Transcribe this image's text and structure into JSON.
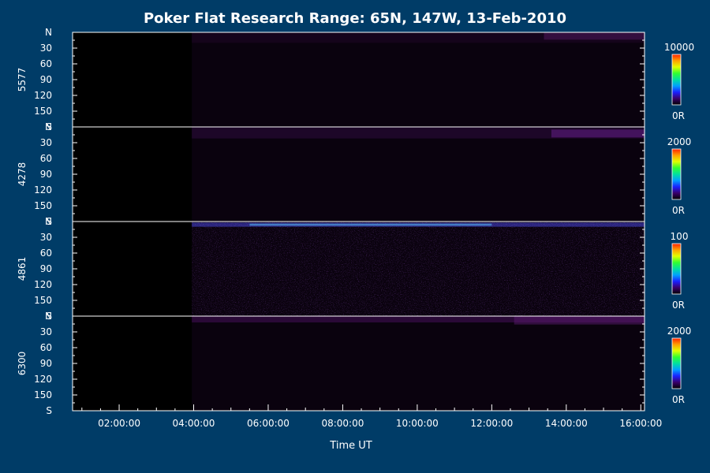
{
  "chart_data": {
    "type": "heatmap",
    "title": "Poker Flat Research Range: 65N, 147W, 13-Feb-2010",
    "xlabel": "Time UT",
    "x_ticks": [
      "02:00:00",
      "04:00:00",
      "06:00:00",
      "08:00:00",
      "10:00:00",
      "12:00:00",
      "14:00:00",
      "16:00:00"
    ],
    "x_range_hours": [
      0.75,
      16.1
    ],
    "data_start_hours": 3.95,
    "y_ticks": [
      "N",
      "30",
      "60",
      "90",
      "120",
      "150",
      "S"
    ],
    "y_range_degrees": [
      0,
      180
    ],
    "colorbar_min_label": "0R",
    "panels": [
      {
        "ylabel": "5577",
        "colorbar_max": "10000",
        "colorbar_max_value": 10000,
        "bright_bands": [
          {
            "elev_from": 0,
            "elev_to": 20,
            "t_from": 3.95,
            "t_to": 16.1,
            "color": "#2a0a35",
            "intensity": 0.35
          },
          {
            "elev_from": 0,
            "elev_to": 14,
            "t_from": 13.4,
            "t_to": 16.1,
            "color": "#5a1a6a",
            "intensity": 0.45
          }
        ]
      },
      {
        "ylabel": "4278",
        "colorbar_max": "2000",
        "colorbar_max_value": 2000,
        "bright_bands": [
          {
            "elev_from": 0,
            "elev_to": 22,
            "t_from": 3.95,
            "t_to": 16.1,
            "color": "#3a1050",
            "intensity": 0.4
          },
          {
            "elev_from": 5,
            "elev_to": 20,
            "t_from": 13.6,
            "t_to": 16.1,
            "color": "#6a2090",
            "intensity": 0.5
          }
        ]
      },
      {
        "ylabel": "4861",
        "colorbar_max": "100",
        "colorbar_max_value": 100,
        "bright_bands": [
          {
            "elev_from": 2,
            "elev_to": 10,
            "t_from": 3.95,
            "t_to": 16.1,
            "color": "#4040c8",
            "intensity": 0.6
          },
          {
            "elev_from": 4,
            "elev_to": 8,
            "t_from": 5.5,
            "t_to": 12.0,
            "color": "#4aa0e0",
            "intensity": 0.7
          }
        ],
        "noise": true
      },
      {
        "ylabel": "6300",
        "colorbar_max": "2000",
        "colorbar_max_value": 2000,
        "bright_bands": [
          {
            "elev_from": 0,
            "elev_to": 12,
            "t_from": 3.95,
            "t_to": 16.1,
            "color": "#4a1060",
            "intensity": 0.5
          },
          {
            "elev_from": 0,
            "elev_to": 16,
            "t_from": 12.6,
            "t_to": 16.1,
            "color": "#5a1a70",
            "intensity": 0.5
          }
        ]
      }
    ],
    "colorbar_colors": [
      "#000000",
      "#3a006a",
      "#1a20ff",
      "#00a0ff",
      "#00e0a0",
      "#30ff30",
      "#e0ff00",
      "#ffa000",
      "#ff2000"
    ]
  }
}
